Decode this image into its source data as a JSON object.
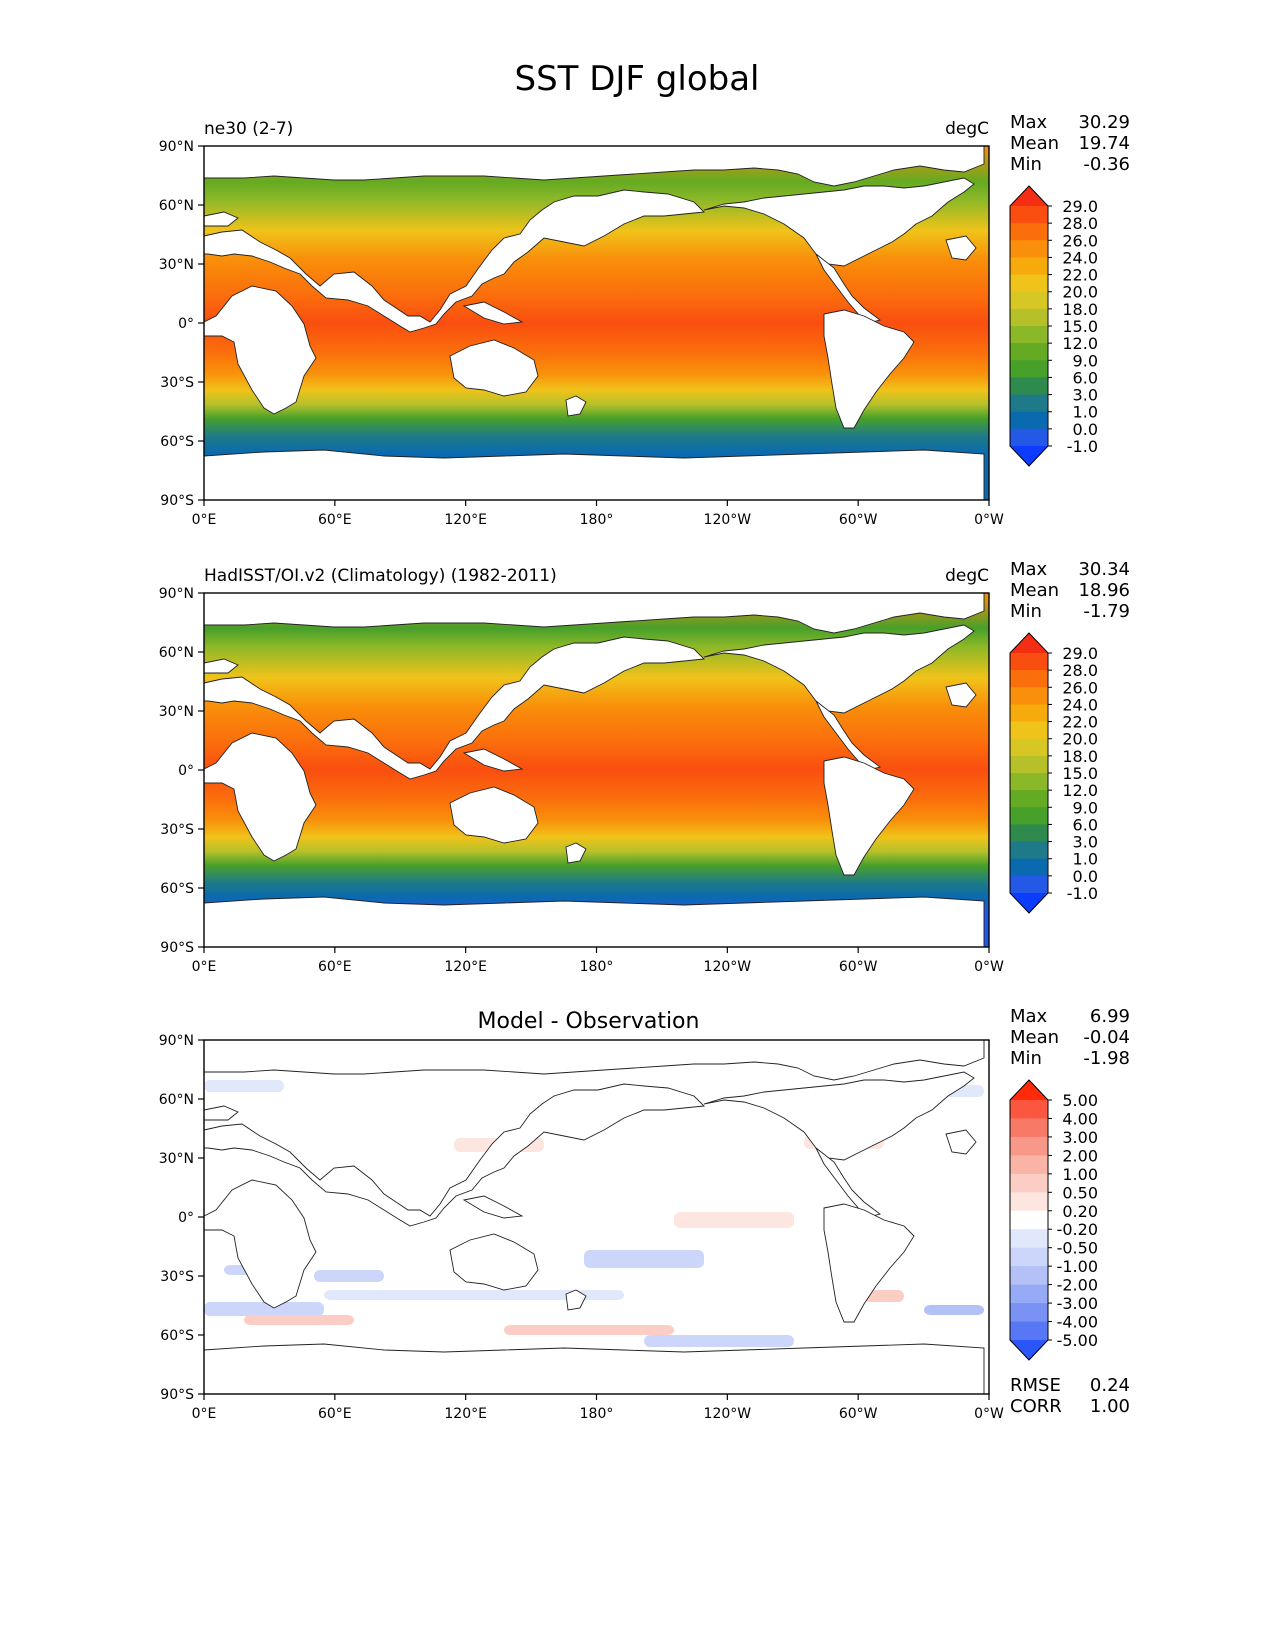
{
  "figure": {
    "title": "SST DJF global"
  },
  "tick_labels": {
    "lat": [
      "90°N",
      "60°N",
      "30°N",
      "0°",
      "30°S",
      "60°S",
      "90°S"
    ],
    "lon": [
      "0°E",
      "60°E",
      "120°E",
      "180°",
      "120°W",
      "60°W",
      "0°W"
    ]
  },
  "panels": [
    {
      "id": "model",
      "left_title": "ne30 (2-7)",
      "center_title": "",
      "right_title": "degC",
      "stats": [
        {
          "label": "Max",
          "value": "30.29"
        },
        {
          "label": "Mean",
          "value": "19.74"
        },
        {
          "label": "Min",
          "value": "-0.36"
        }
      ],
      "colorbar": {
        "labels": [
          "29.0",
          "28.0",
          "26.0",
          "24.0",
          "22.0",
          "20.0",
          "18.0",
          "15.0",
          "12.0",
          "9.0",
          "6.0",
          "3.0",
          "1.0",
          "0.0",
          "-1.0"
        ],
        "colors": [
          "#f52d14",
          "#fa4e10",
          "#fb6e0c",
          "#f98f0a",
          "#f7aa0c",
          "#f0c31a",
          "#d7c724",
          "#b6c12a",
          "#8bb828",
          "#64aa22",
          "#47a02a",
          "#2f8a4e",
          "#1e7a88",
          "#0a6ab0",
          "#2458e6",
          "#0c3cff"
        ]
      },
      "bottom_stats": []
    },
    {
      "id": "obs",
      "left_title": "HadISST/OI.v2 (Climatology) (1982-2011)",
      "center_title": "",
      "right_title": "degC",
      "stats": [
        {
          "label": "Max",
          "value": "30.34"
        },
        {
          "label": "Mean",
          "value": "18.96"
        },
        {
          "label": "Min",
          "value": "-1.79"
        }
      ],
      "colorbar": {
        "labels": [
          "29.0",
          "28.0",
          "26.0",
          "24.0",
          "22.0",
          "20.0",
          "18.0",
          "15.0",
          "12.0",
          "9.0",
          "6.0",
          "3.0",
          "1.0",
          "0.0",
          "-1.0"
        ],
        "colors": [
          "#f52d14",
          "#fa4e10",
          "#fb6e0c",
          "#f98f0a",
          "#f7aa0c",
          "#f0c31a",
          "#d7c724",
          "#b6c12a",
          "#8bb828",
          "#64aa22",
          "#47a02a",
          "#2f8a4e",
          "#1e7a88",
          "#0a6ab0",
          "#2458e6",
          "#0c3cff"
        ]
      },
      "bottom_stats": []
    },
    {
      "id": "diff",
      "left_title": "",
      "center_title": "Model - Observation",
      "right_title": "",
      "stats": [
        {
          "label": "Max",
          "value": "6.99"
        },
        {
          "label": "Mean",
          "value": "-0.04"
        },
        {
          "label": "Min",
          "value": "-1.98"
        }
      ],
      "colorbar": {
        "labels": [
          "5.00",
          "4.00",
          "3.00",
          "2.00",
          "1.00",
          "0.50",
          "0.20",
          "-0.20",
          "-0.50",
          "-1.00",
          "-2.00",
          "-3.00",
          "-4.00",
          "-5.00"
        ],
        "colors": [
          "#ff2a0a",
          "#fb5640",
          "#f87a66",
          "#f89888",
          "#f9b4a6",
          "#fbcdc4",
          "#fde6e0",
          "#ffffff",
          "#e2e8fc",
          "#ccd6fa",
          "#b3c1f7",
          "#96aaf5",
          "#7a92f4",
          "#5877f5",
          "#2a55f8"
        ]
      },
      "bottom_stats": [
        {
          "label": "RMSE",
          "value": "0.24"
        },
        {
          "label": "CORR",
          "value": "1.00"
        }
      ]
    }
  ]
}
